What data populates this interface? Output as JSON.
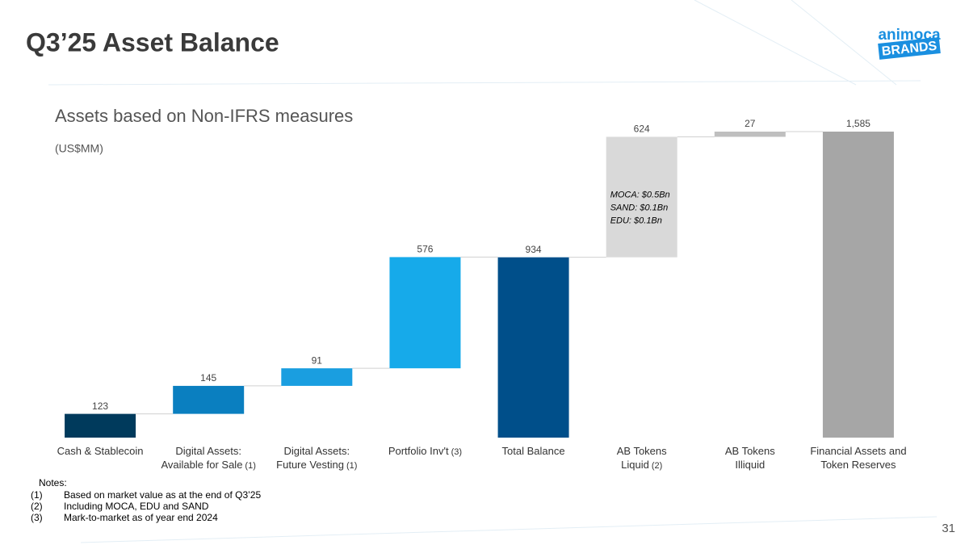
{
  "header": {
    "title": "Q3’25 Asset Balance",
    "logo_top": "animoca",
    "logo_bottom": "BRANDS"
  },
  "chart_data": {
    "type": "waterfall",
    "subtitle": "Assets based on Non-IFRS measures",
    "unit_label": "(US$MM)",
    "categories": [
      [
        "Cash & Stablecoin"
      ],
      [
        "Digital Assets:",
        "Available for Sale"
      ],
      [
        "Digital Assets:",
        "Future Vesting"
      ],
      [
        "Portfolio Inv't"
      ],
      [
        "Total Balance"
      ],
      [
        "AB Tokens",
        "Liquid"
      ],
      [
        "AB Tokens",
        "Illiquid"
      ],
      [
        "Financial Assets and",
        "Token Reserves"
      ]
    ],
    "category_notes": [
      null,
      "(1)",
      "(1)",
      "(3)",
      null,
      "(2)",
      null,
      null
    ],
    "values": [
      123,
      145,
      91,
      576,
      934,
      624,
      27,
      1585
    ],
    "value_labels": [
      "123",
      "145",
      "91",
      "576",
      "934",
      "624",
      "27",
      "1,585"
    ],
    "is_total": [
      false,
      false,
      false,
      false,
      true,
      false,
      false,
      true
    ],
    "colors": [
      "#003a5c",
      "#0a7fc0",
      "#1a9ee0",
      "#16aaea",
      "#004f8a",
      "#d9d9d9",
      "#bfbfbf",
      "#a6a6a6"
    ],
    "annotation": {
      "category": 5,
      "lines": [
        "MOCA: $0.5Bn",
        "SAND: $0.1Bn",
        "EDU: $0.1Bn"
      ]
    }
  },
  "notes": {
    "heading": "Notes:",
    "items": [
      {
        "marker": "(1)",
        "text": "Based on market value as at the end of Q3’25"
      },
      {
        "marker": "(2)",
        "text": "Including MOCA, EDU and SAND"
      },
      {
        "marker": "(3)",
        "text": "Mark-to-market as of year end 2024"
      }
    ]
  },
  "page_number": "31"
}
